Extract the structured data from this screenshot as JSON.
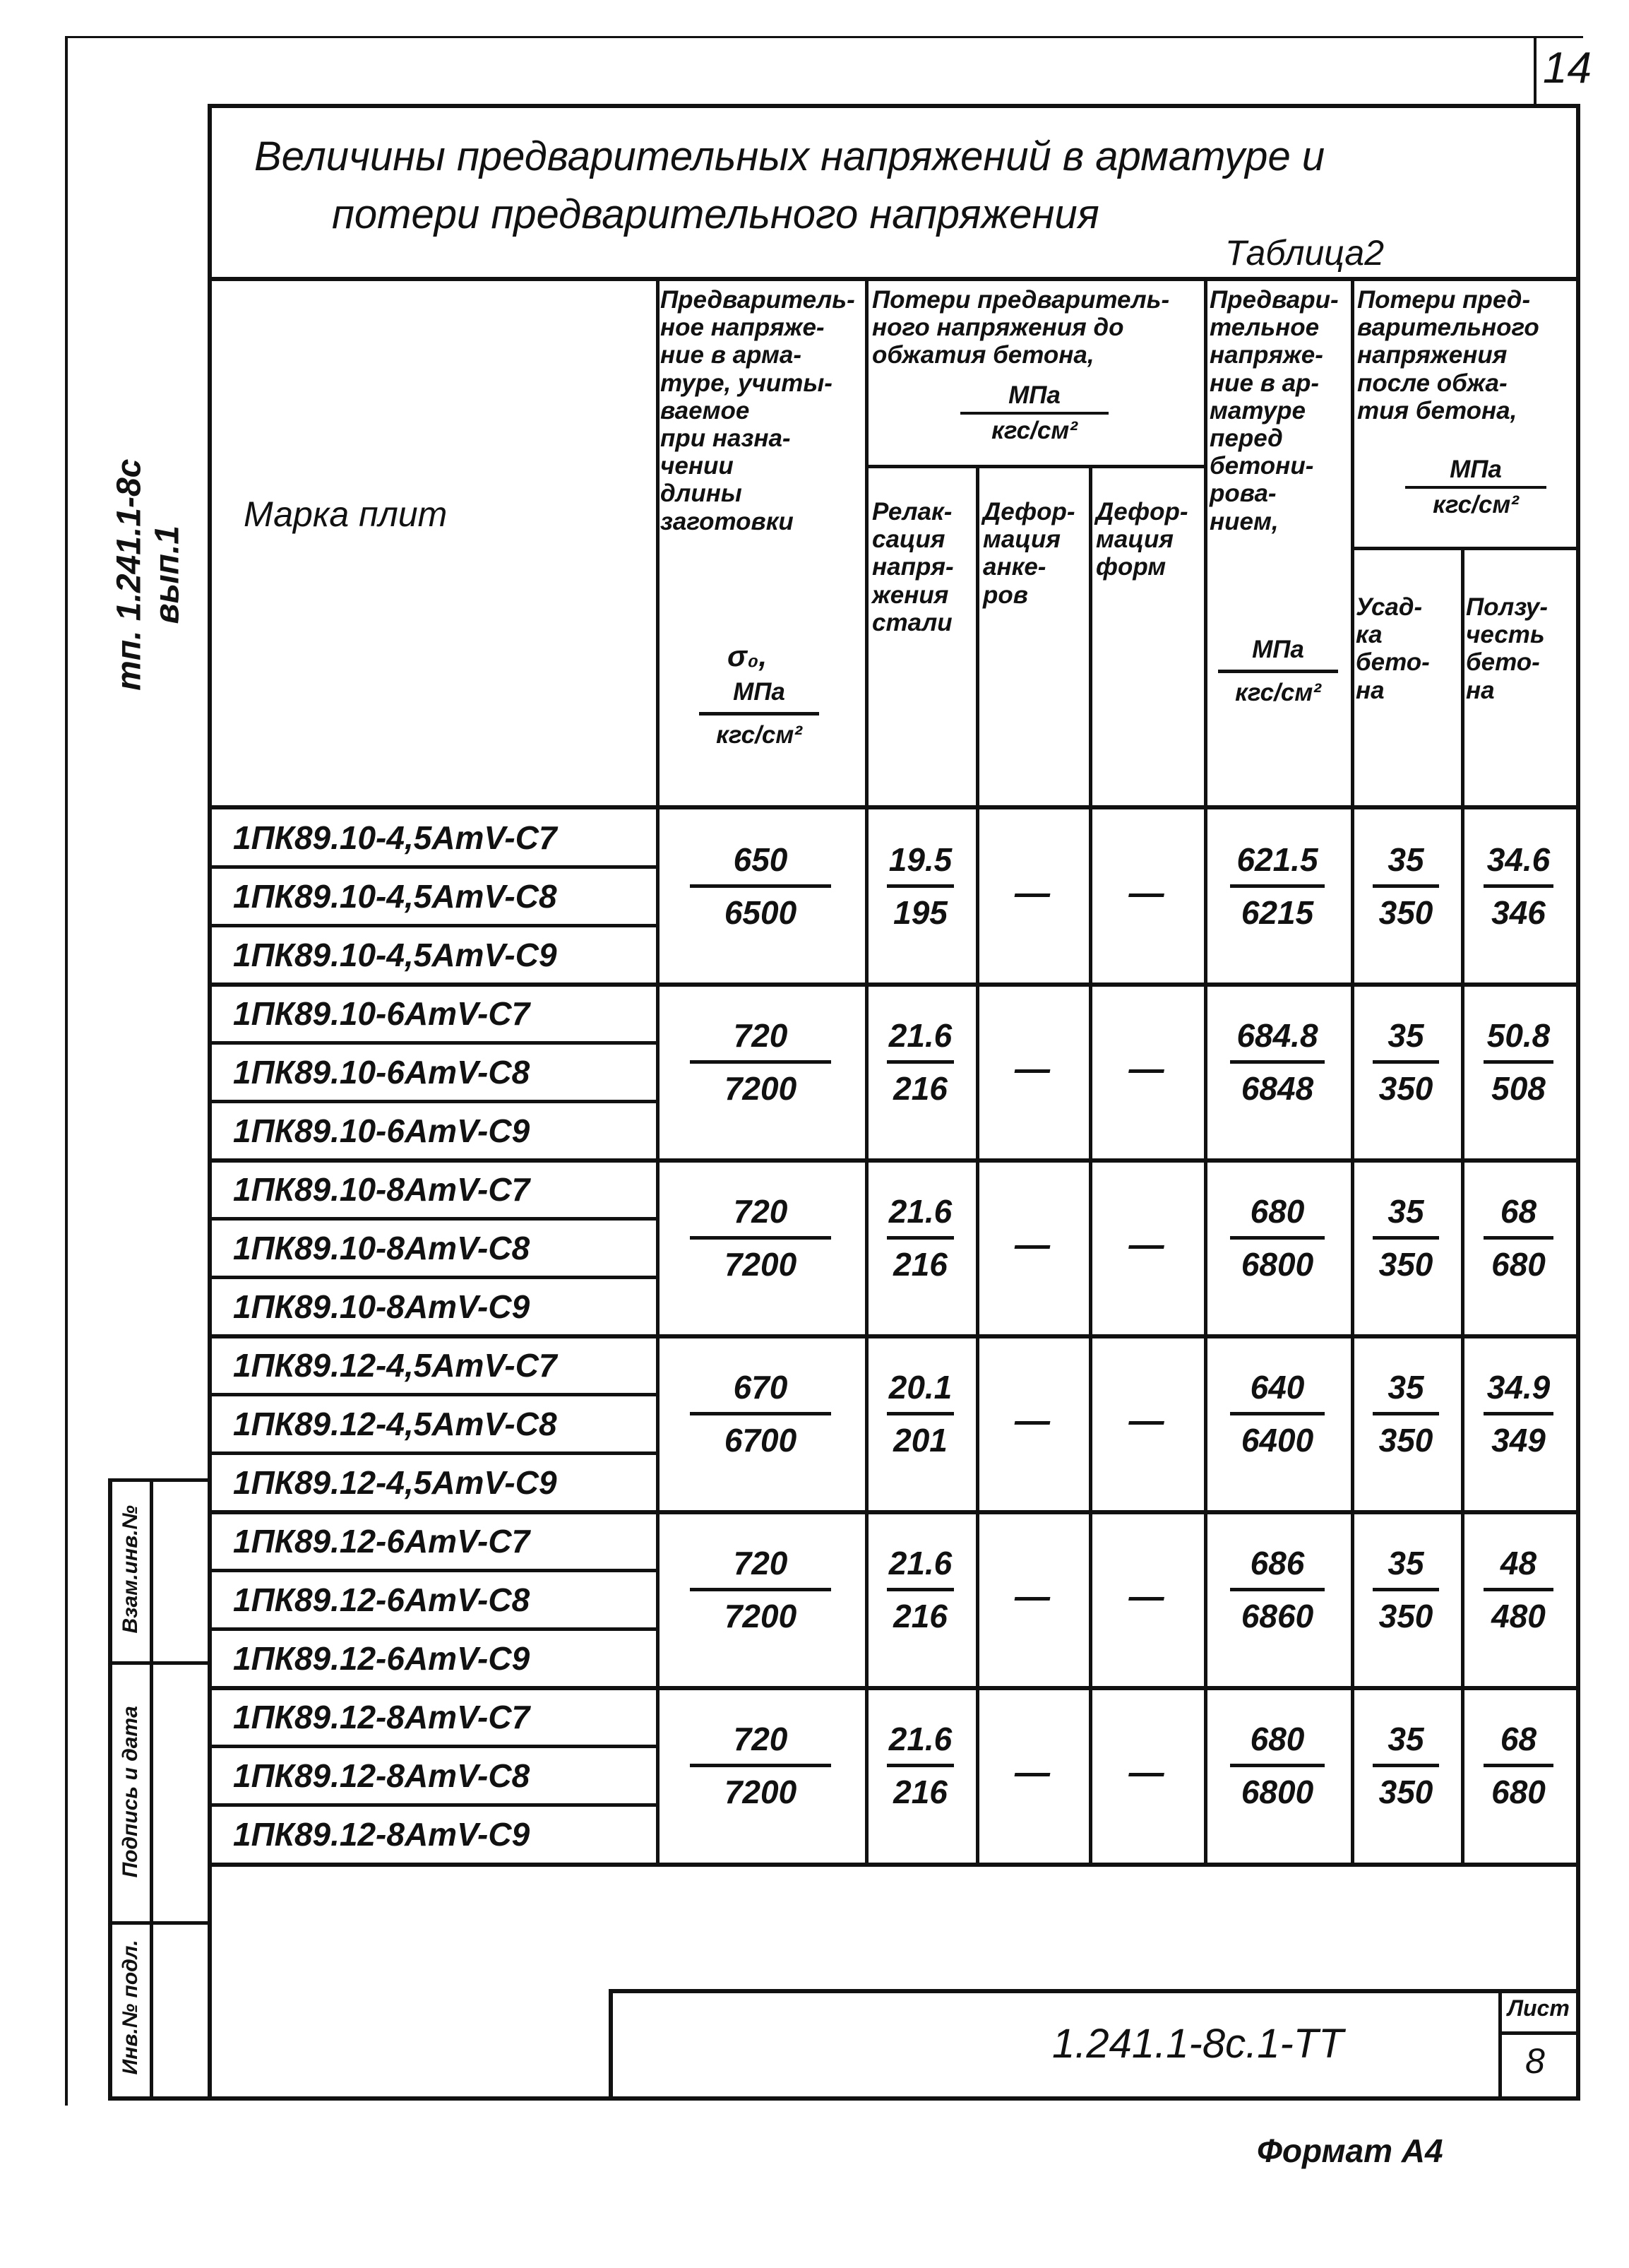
{
  "page_number": "14",
  "side_code": "тп. 1.241.1-8с  вып.1",
  "title": {
    "line1": "Величины предварительных  напряжений в арматуре и",
    "line2": "потери предварительного  напряжения",
    "table_label": "Таблица2"
  },
  "headers": {
    "mark": "Марка   плит",
    "prestress": "Предваритель-\nное напряже-\nние в арма-\nтуре, учиты-\nваемое\nпри назна-\nчении\nдлины\nзаготовки",
    "prestress_units": {
      "symbol": "σ₀,",
      "num": "МПа",
      "den": "кгс/см²"
    },
    "losses_before": "Потери предваритель-\nного напряжения до\nобжатия бетона,",
    "losses_before_units": {
      "num": "МПа",
      "den": "кгс/см²"
    },
    "relaxation": "Релак-\nсация\nнапря-\nжения\nстали",
    "anchor_deformation": "Дефор-\nмация\nанке-\nров",
    "form_deformation": "Дефор-\nмация\nформ",
    "before_concreting": "Предвари-\nтельное\nнапряже-\nние в ар-\nматуре\nперед\nбетони-\nрова-\nнием,",
    "before_concreting_units": {
      "num": "МПа",
      "den": "кгс/см²"
    },
    "losses_after": "Потери пред-\nварительного\nнапряжения\nпосле обжа-\nтия бетона,",
    "losses_after_units": {
      "num": "МПа",
      "den": "кгс/см²"
    },
    "shrinkage": "Усад-\nка\nбето-\nна",
    "creep": "Ползу-\nчесть\nбето-\nна"
  },
  "rows": [
    "1ПК89.10-4,5АтV-С7",
    "1ПК89.10-4,5АтV-С8",
    "1ПК89.10-4,5АтV-С9",
    "1ПК89.10-6АтV-С7",
    "1ПК89.10-6АтV-С8",
    "1ПК89.10-6АтV-С9",
    "1ПК89.10-8АтV-С7",
    "1ПК89.10-8АтV-С8",
    "1ПК89.10-8АтV-С9",
    "1ПК89.12-4,5АтV-С7",
    "1ПК89.12-4,5АтV-С8",
    "1ПК89.12-4,5АтV-С9",
    "1ПК89.12-6АтV-С7",
    "1ПК89.12-6АтV-С8",
    "1ПК89.12-6АтV-С9",
    "1ПК89.12-8АтV-С7",
    "1ПК89.12-8АтV-С8",
    "1ПК89.12-8АтV-С9"
  ],
  "groups": [
    {
      "prestress": [
        "650",
        "6500"
      ],
      "relaxation": [
        "19.5",
        "195"
      ],
      "anchor": "—",
      "form": "—",
      "before_concreting": [
        "621.5",
        "6215"
      ],
      "shrinkage": [
        "35",
        "350"
      ],
      "creep": [
        "34.6",
        "346"
      ]
    },
    {
      "prestress": [
        "720",
        "7200"
      ],
      "relaxation": [
        "21.6",
        "216"
      ],
      "anchor": "—",
      "form": "—",
      "before_concreting": [
        "684.8",
        "6848"
      ],
      "shrinkage": [
        "35",
        "350"
      ],
      "creep": [
        "50.8",
        "508"
      ]
    },
    {
      "prestress": [
        "720",
        "7200"
      ],
      "relaxation": [
        "21.6",
        "216"
      ],
      "anchor": "—",
      "form": "—",
      "before_concreting": [
        "680",
        "6800"
      ],
      "shrinkage": [
        "35",
        "350"
      ],
      "creep": [
        "68",
        "680"
      ]
    },
    {
      "prestress": [
        "670",
        "6700"
      ],
      "relaxation": [
        "20.1",
        "201"
      ],
      "anchor": "—",
      "form": "—",
      "before_concreting": [
        "640",
        "6400"
      ],
      "shrinkage": [
        "35",
        "350"
      ],
      "creep": [
        "34.9",
        "349"
      ]
    },
    {
      "prestress": [
        "720",
        "7200"
      ],
      "relaxation": [
        "21.6",
        "216"
      ],
      "anchor": "—",
      "form": "—",
      "before_concreting": [
        "686",
        "6860"
      ],
      "shrinkage": [
        "35",
        "350"
      ],
      "creep": [
        "48",
        "480"
      ]
    },
    {
      "prestress": [
        "720",
        "7200"
      ],
      "relaxation": [
        "21.6",
        "216"
      ],
      "anchor": "—",
      "form": "—",
      "before_concreting": [
        "680",
        "6800"
      ],
      "shrinkage": [
        "35",
        "350"
      ],
      "creep": [
        "68",
        "680"
      ]
    }
  ],
  "stamp": {
    "code": "1.241.1-8с.1-ТТ",
    "sheet_label": "Лист",
    "sheet_number": "8"
  },
  "margin_stamp": [
    "Инв.№ подл.",
    "Подпись и дата",
    "Взам.инв.№"
  ],
  "format": "Формат А4"
}
